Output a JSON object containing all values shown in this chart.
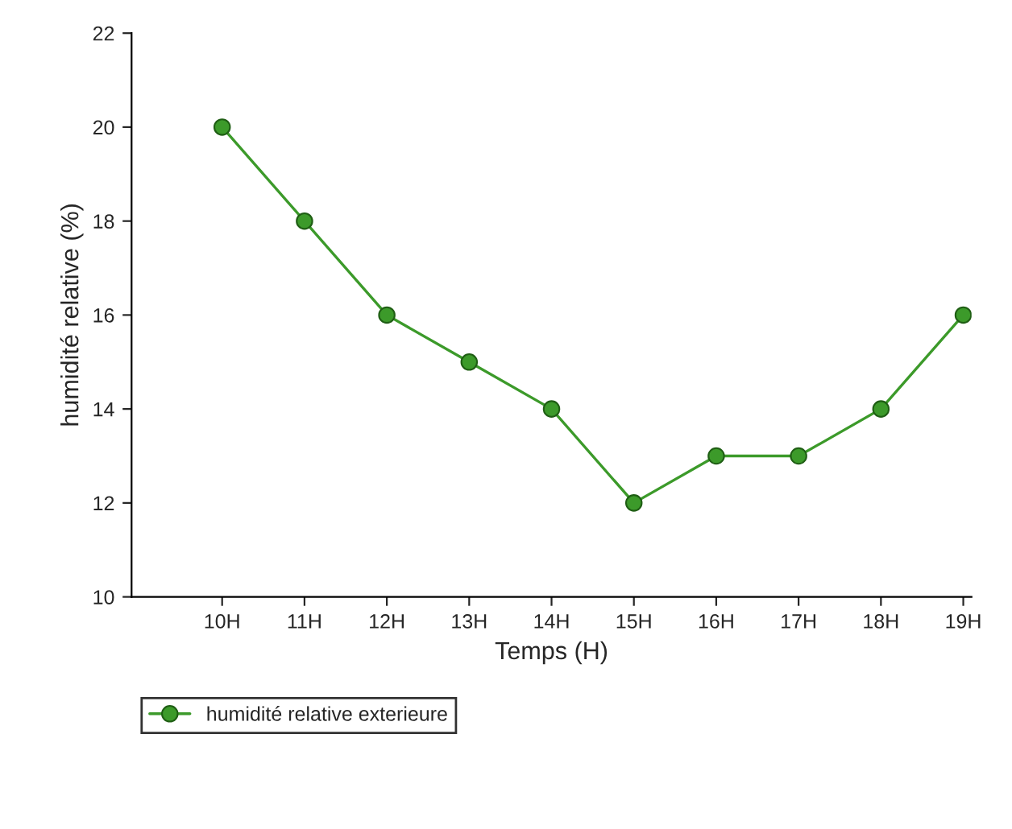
{
  "chart_data": {
    "type": "line",
    "xlabel": "Temps (H)",
    "ylabel": "humidité relative (%)",
    "categories": [
      "10H",
      "11H",
      "12H",
      "13H",
      "14H",
      "15H",
      "16H",
      "17H",
      "18H",
      "19H"
    ],
    "series": [
      {
        "name": "humidité relative exterieure",
        "color": "#3c9a2a",
        "values": [
          20,
          18,
          16,
          15,
          14,
          12,
          13,
          13,
          14,
          16
        ]
      }
    ],
    "ylim": [
      10,
      22
    ],
    "yticks": [
      10,
      12,
      14,
      16,
      18,
      20,
      22
    ],
    "marker": "circle",
    "line_style": "solid",
    "legend": "bottom left",
    "grid": false
  }
}
